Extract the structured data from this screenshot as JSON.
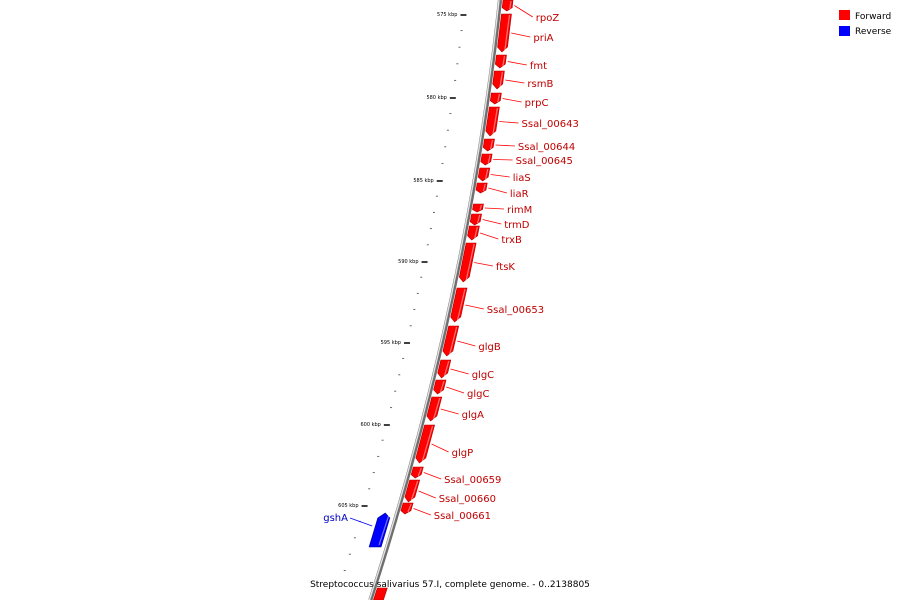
{
  "caption": "Streptococcus salivarius 57.I, complete genome. - 0..2138805",
  "legend": [
    {
      "label": "Forward",
      "color": "#ff0000"
    },
    {
      "label": "Reverse",
      "color": "#0000ff"
    }
  ],
  "colors": {
    "forward": "#ff0000",
    "reverse": "#0000ff",
    "backbone": "#999999"
  },
  "ticks": [
    {
      "label": "575 kbp",
      "kbp": 575
    },
    {
      "label": "580 kbp",
      "kbp": 580
    },
    {
      "label": "585 kbp",
      "kbp": 585
    },
    {
      "label": "590 kbp",
      "kbp": 590
    },
    {
      "label": "595 kbp",
      "kbp": 595
    },
    {
      "label": "600 kbp",
      "kbp": 600
    },
    {
      "label": "605 kbp",
      "kbp": 605
    }
  ],
  "genes": [
    {
      "name": "rpoZ",
      "strand": "forward"
    },
    {
      "name": "priA",
      "strand": "forward"
    },
    {
      "name": "fmt",
      "strand": "forward"
    },
    {
      "name": "rsmB",
      "strand": "forward"
    },
    {
      "name": "prpC",
      "strand": "forward"
    },
    {
      "name": "Ssal_00643",
      "strand": "forward"
    },
    {
      "name": "Ssal_00644",
      "strand": "forward"
    },
    {
      "name": "Ssal_00645",
      "strand": "forward"
    },
    {
      "name": "liaS",
      "strand": "forward"
    },
    {
      "name": "liaR",
      "strand": "forward"
    },
    {
      "name": "rimM",
      "strand": "forward"
    },
    {
      "name": "trmD",
      "strand": "forward"
    },
    {
      "name": "trxB",
      "strand": "forward"
    },
    {
      "name": "ftsK",
      "strand": "forward"
    },
    {
      "name": "Ssal_00653",
      "strand": "forward"
    },
    {
      "name": "glgB",
      "strand": "forward"
    },
    {
      "name": "glgC",
      "strand": "forward"
    },
    {
      "name": "glgC",
      "strand": "forward"
    },
    {
      "name": "glgA",
      "strand": "forward"
    },
    {
      "name": "glgP",
      "strand": "forward"
    },
    {
      "name": "Ssal_00659",
      "strand": "forward"
    },
    {
      "name": "Ssal_00660",
      "strand": "forward"
    },
    {
      "name": "Ssal_00661",
      "strand": "forward"
    },
    {
      "name": "gshA",
      "strand": "reverse"
    }
  ]
}
